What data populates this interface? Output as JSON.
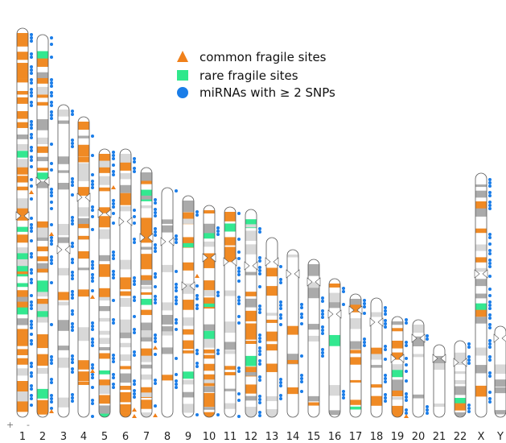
{
  "legend": [
    {
      "label": "common fragile sites"
    },
    {
      "label": "rare fragile sites"
    },
    {
      "label": "miRNAs with  ≥ 2 SNPs"
    }
  ],
  "chromosomes": [
    "1",
    "2",
    "3",
    "4",
    "5",
    "6",
    "7",
    "8",
    "9",
    "10",
    "11",
    "12",
    "13",
    "14",
    "15",
    "16",
    "17",
    "18",
    "19",
    "20",
    "21",
    "22",
    "X",
    "Y"
  ],
  "strand_marks": [
    "+",
    "-"
  ]
}
